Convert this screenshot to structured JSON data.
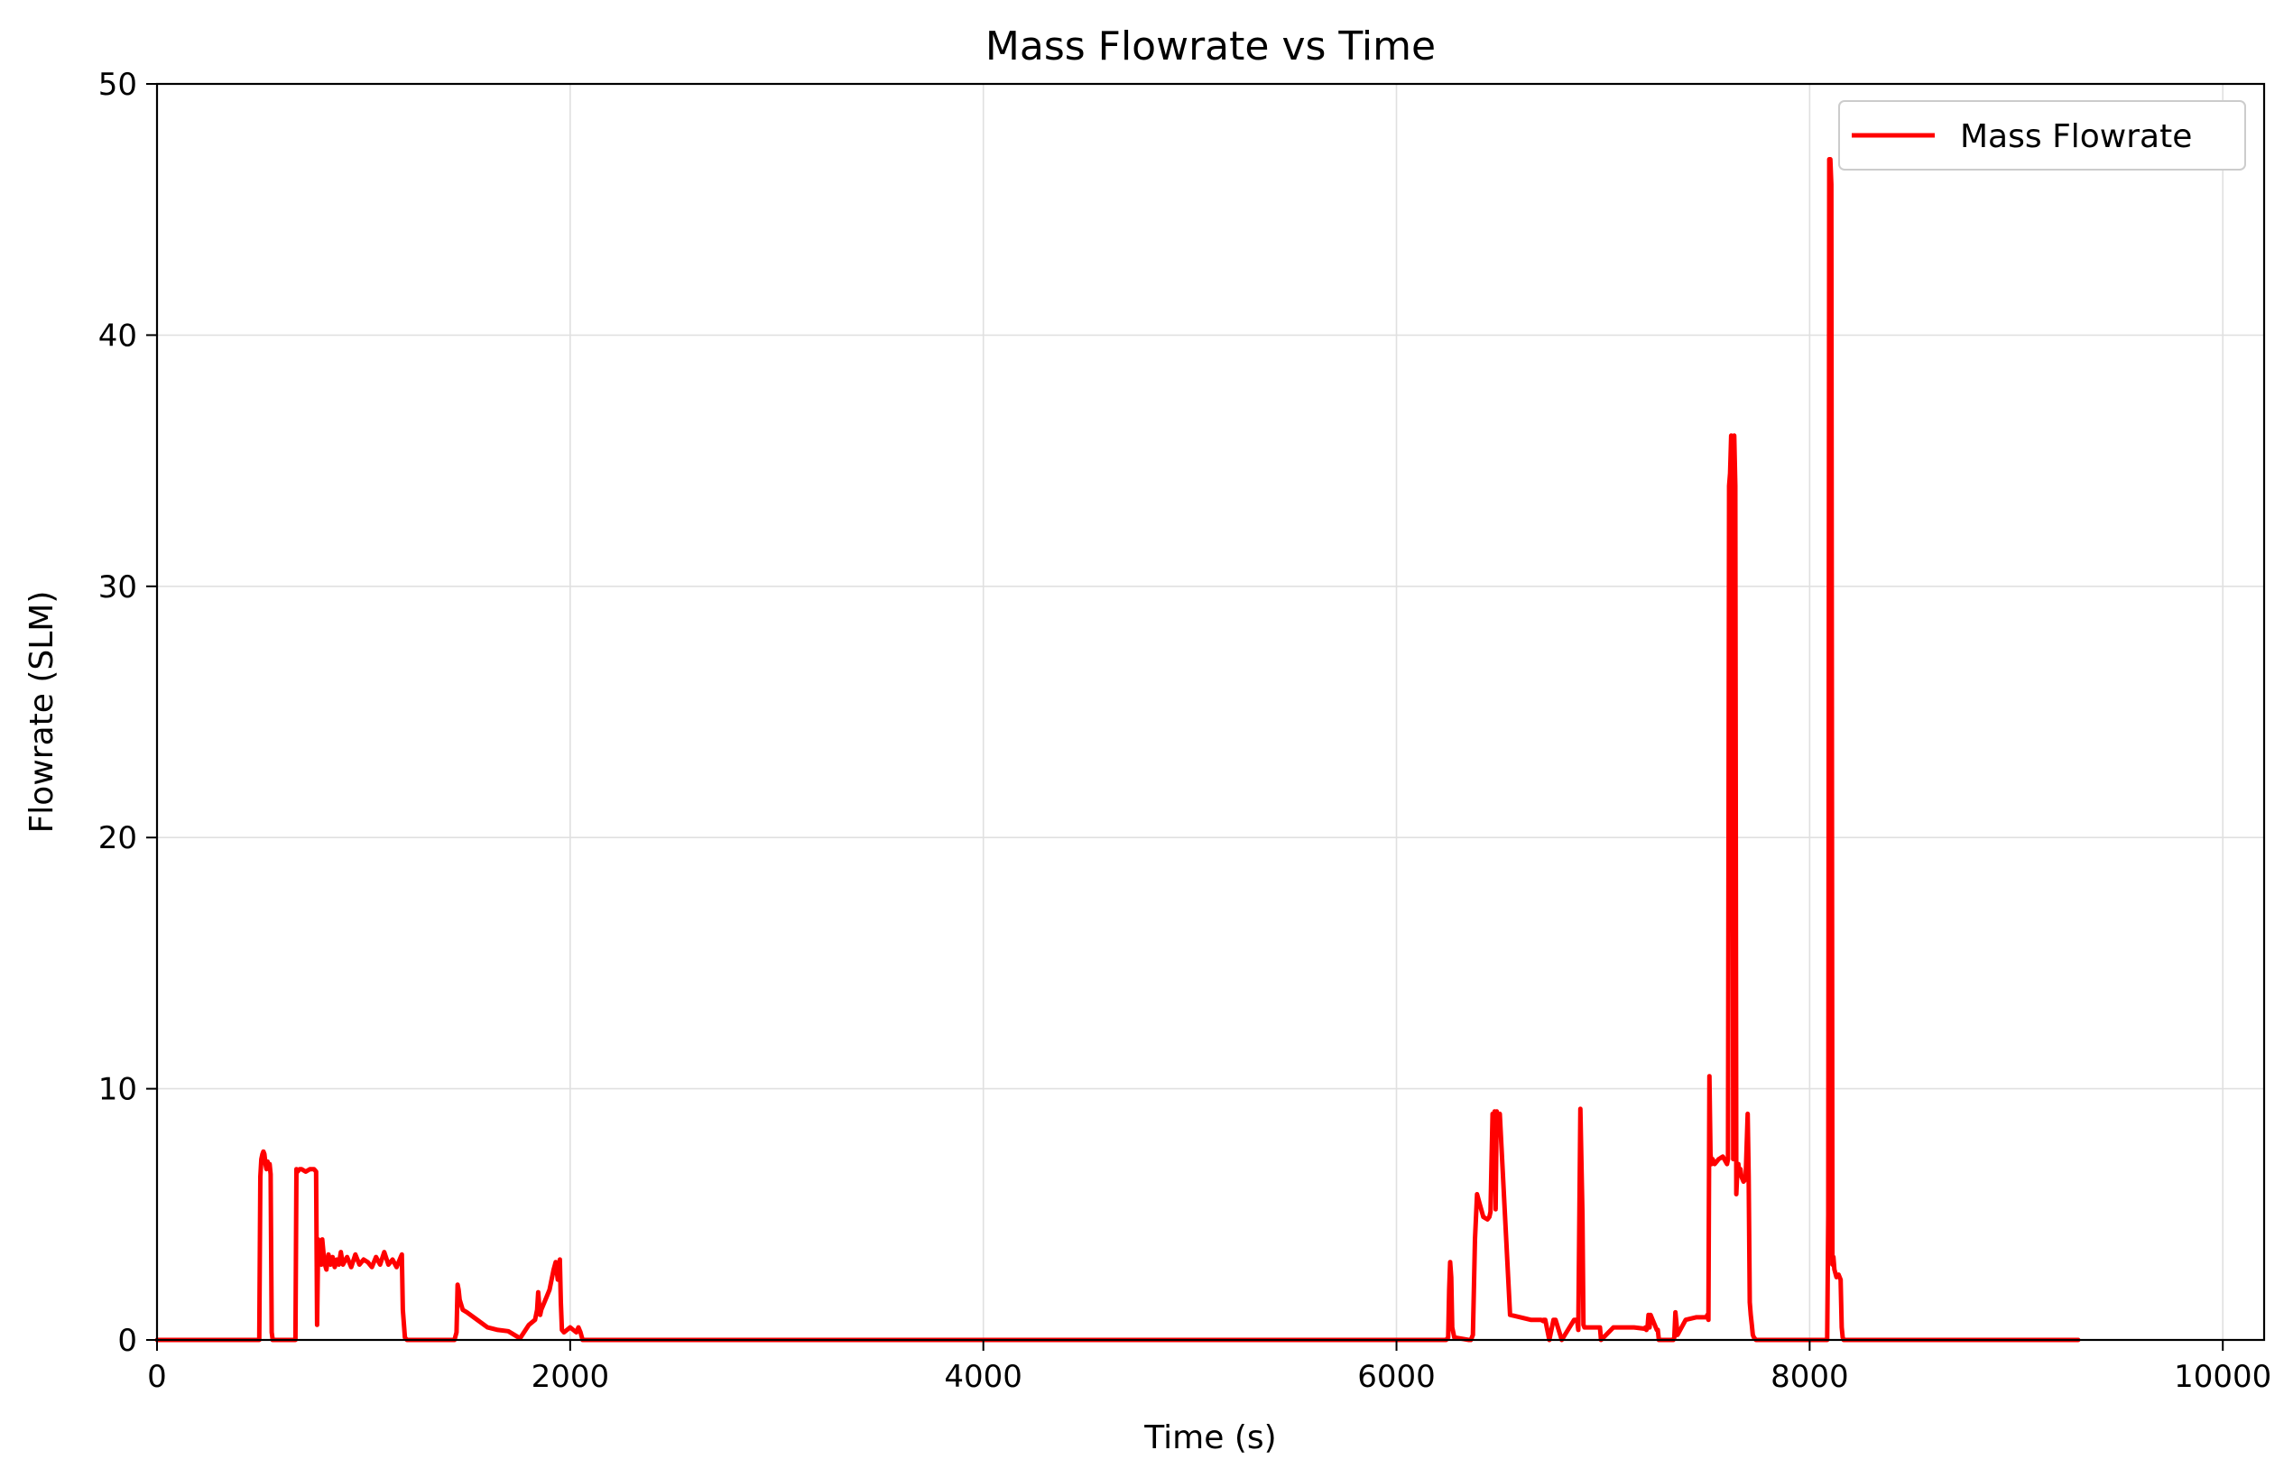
{
  "chart_data": {
    "type": "line",
    "title": "Mass Flowrate vs Time",
    "xlabel": "Time (s)",
    "ylabel": "Flowrate (SLM)",
    "xlim": [
      0,
      10200
    ],
    "ylim": [
      0,
      50
    ],
    "xticks": [
      0,
      2000,
      4000,
      6000,
      8000,
      10000
    ],
    "xtick_labels": [
      "0",
      "2000",
      "4000",
      "6000",
      "8000",
      "10000"
    ],
    "yticks": [
      0,
      10,
      20,
      30,
      40,
      50
    ],
    "ytick_labels": [
      "0",
      "10",
      "20",
      "30",
      "40",
      "50"
    ],
    "grid": true,
    "legend_position": "top-right",
    "colors": {
      "series": "#ff0000",
      "grid": "#e0e0e0",
      "axes": "#000000"
    },
    "series": [
      {
        "name": "Mass Flowrate",
        "x": [
          0,
          495,
          500,
          505,
          510,
          515,
          520,
          525,
          530,
          535,
          540,
          545,
          550,
          555,
          560,
          570,
          580,
          670,
          675,
          680,
          690,
          700,
          720,
          740,
          750,
          760,
          770,
          775,
          780,
          785,
          790,
          795,
          800,
          810,
          820,
          830,
          840,
          850,
          860,
          870,
          880,
          890,
          900,
          920,
          940,
          960,
          980,
          1000,
          1020,
          1040,
          1060,
          1080,
          1100,
          1120,
          1140,
          1160,
          1180,
          1185,
          1190,
          1200,
          1210,
          1220,
          1440,
          1450,
          1455,
          1460,
          1465,
          1480,
          1500,
          1550,
          1600,
          1650,
          1700,
          1750,
          1760,
          1800,
          1830,
          1840,
          1845,
          1850,
          1855,
          1860,
          1880,
          1900,
          1920,
          1930,
          1940,
          1950,
          1955,
          1960,
          1970,
          2000,
          2030,
          2040,
          2050,
          2060,
          2100,
          6200,
          6240,
          6250,
          6255,
          6260,
          6265,
          6270,
          6280,
          6350,
          6360,
          6370,
          6380,
          6390,
          6400,
          6420,
          6440,
          6450,
          6455,
          6460,
          6465,
          6470,
          6475,
          6480,
          6485,
          6490,
          6500,
          6550,
          6600,
          6650,
          6700,
          6710,
          6712,
          6715,
          6720,
          6740,
          6760,
          6762,
          6765,
          6770,
          6800,
          6860,
          6865,
          6870,
          6875,
          6880,
          6890,
          6900,
          6905,
          6910,
          6920,
          6960,
          6980,
          6982,
          6985,
          6990,
          7050,
          7100,
          7150,
          7200,
          7205,
          7210,
          7215,
          7220,
          7225,
          7230,
          7250,
          7260,
          7265,
          7270,
          7275,
          7300,
          7340,
          7345,
          7350,
          7355,
          7360,
          7400,
          7450,
          7500,
          7505,
          7510,
          7515,
          7520,
          7525,
          7530,
          7540,
          7560,
          7580,
          7600,
          7605,
          7610,
          7615,
          7620,
          7625,
          7630,
          7635,
          7640,
          7645,
          7650,
          7655,
          7660,
          7665,
          7670,
          7680,
          7690,
          7700,
          7705,
          7710,
          7715,
          7720,
          7725,
          7730,
          7740,
          7760,
          7800,
          8050,
          8080,
          8085,
          8090,
          8095,
          8100,
          8105,
          8110,
          8115,
          8120,
          8130,
          8140,
          8150,
          8155,
          8160,
          8165,
          8200,
          8500,
          9300
        ],
        "values": [
          0,
          0,
          6.5,
          7.2,
          7.4,
          7.5,
          7.4,
          7.0,
          6.8,
          7.1,
          6.9,
          7.0,
          6.6,
          0.3,
          0,
          0,
          0,
          0,
          6.8,
          6.7,
          6.8,
          6.8,
          6.7,
          6.8,
          6.8,
          6.8,
          6.7,
          0.6,
          4.0,
          3.2,
          3.8,
          3.0,
          4.0,
          3.1,
          2.8,
          3.4,
          3.0,
          3.3,
          2.9,
          3.2,
          3.0,
          3.5,
          3.0,
          3.3,
          2.9,
          3.4,
          3.0,
          3.2,
          3.1,
          2.9,
          3.3,
          3.0,
          3.5,
          3.0,
          3.2,
          2.9,
          3.3,
          3.4,
          1.2,
          0.1,
          0,
          0,
          0,
          0.3,
          2.2,
          2.0,
          1.6,
          1.2,
          1.1,
          0.8,
          0.5,
          0.4,
          0.35,
          0.1,
          0.1,
          0.6,
          0.8,
          1.2,
          1.9,
          1.4,
          1.0,
          1.2,
          1.6,
          2.0,
          2.8,
          3.1,
          2.4,
          3.2,
          1.5,
          0.4,
          0.3,
          0.5,
          0.3,
          0.5,
          0.3,
          0,
          0,
          0,
          0,
          0.1,
          2.0,
          3.1,
          2.5,
          0.5,
          0.1,
          0,
          0,
          0.2,
          4.0,
          5.8,
          5.5,
          4.9,
          4.8,
          4.9,
          5.1,
          7.0,
          9.0,
          8.5,
          9.1,
          5.2,
          9.1,
          8.9,
          9.0,
          1.0,
          0.9,
          0.8,
          0.8,
          0.75,
          0.8,
          0.8,
          0.8,
          0,
          0.8,
          0.8,
          0.8,
          0.8,
          0,
          0.8,
          0.8,
          0.8,
          0.75,
          0.4,
          9.2,
          5.0,
          0.6,
          0.5,
          0.5,
          0.5,
          0.5,
          0.5,
          0.5,
          0,
          0.5,
          0.5,
          0.5,
          0.45,
          0.5,
          0.4,
          0.5,
          1.0,
          0.5,
          1.0,
          0.6,
          0.4,
          0.4,
          0,
          0,
          0,
          0,
          0.1,
          1.1,
          0.7,
          0.2,
          0.8,
          0.9,
          0.9,
          1.0,
          0.8,
          10.5,
          7.4,
          7.0,
          7.2,
          7.0,
          7.2,
          7.3,
          7.0,
          7.2,
          34.0,
          34.5,
          36.0,
          35.5,
          7.2,
          36.0,
          34.0,
          5.8,
          6.8,
          7.0,
          6.6,
          6.8,
          6.5,
          6.3,
          6.4,
          9.0,
          6.5,
          1.5,
          1.0,
          0.6,
          0.2,
          0.1,
          0,
          0,
          0,
          0,
          0,
          0,
          5.0,
          47.0,
          47.0,
          46.0,
          3.0,
          3.3,
          2.8,
          2.5,
          2.6,
          2.4,
          0.5,
          0.1,
          0,
          0,
          0,
          0
        ]
      }
    ]
  }
}
